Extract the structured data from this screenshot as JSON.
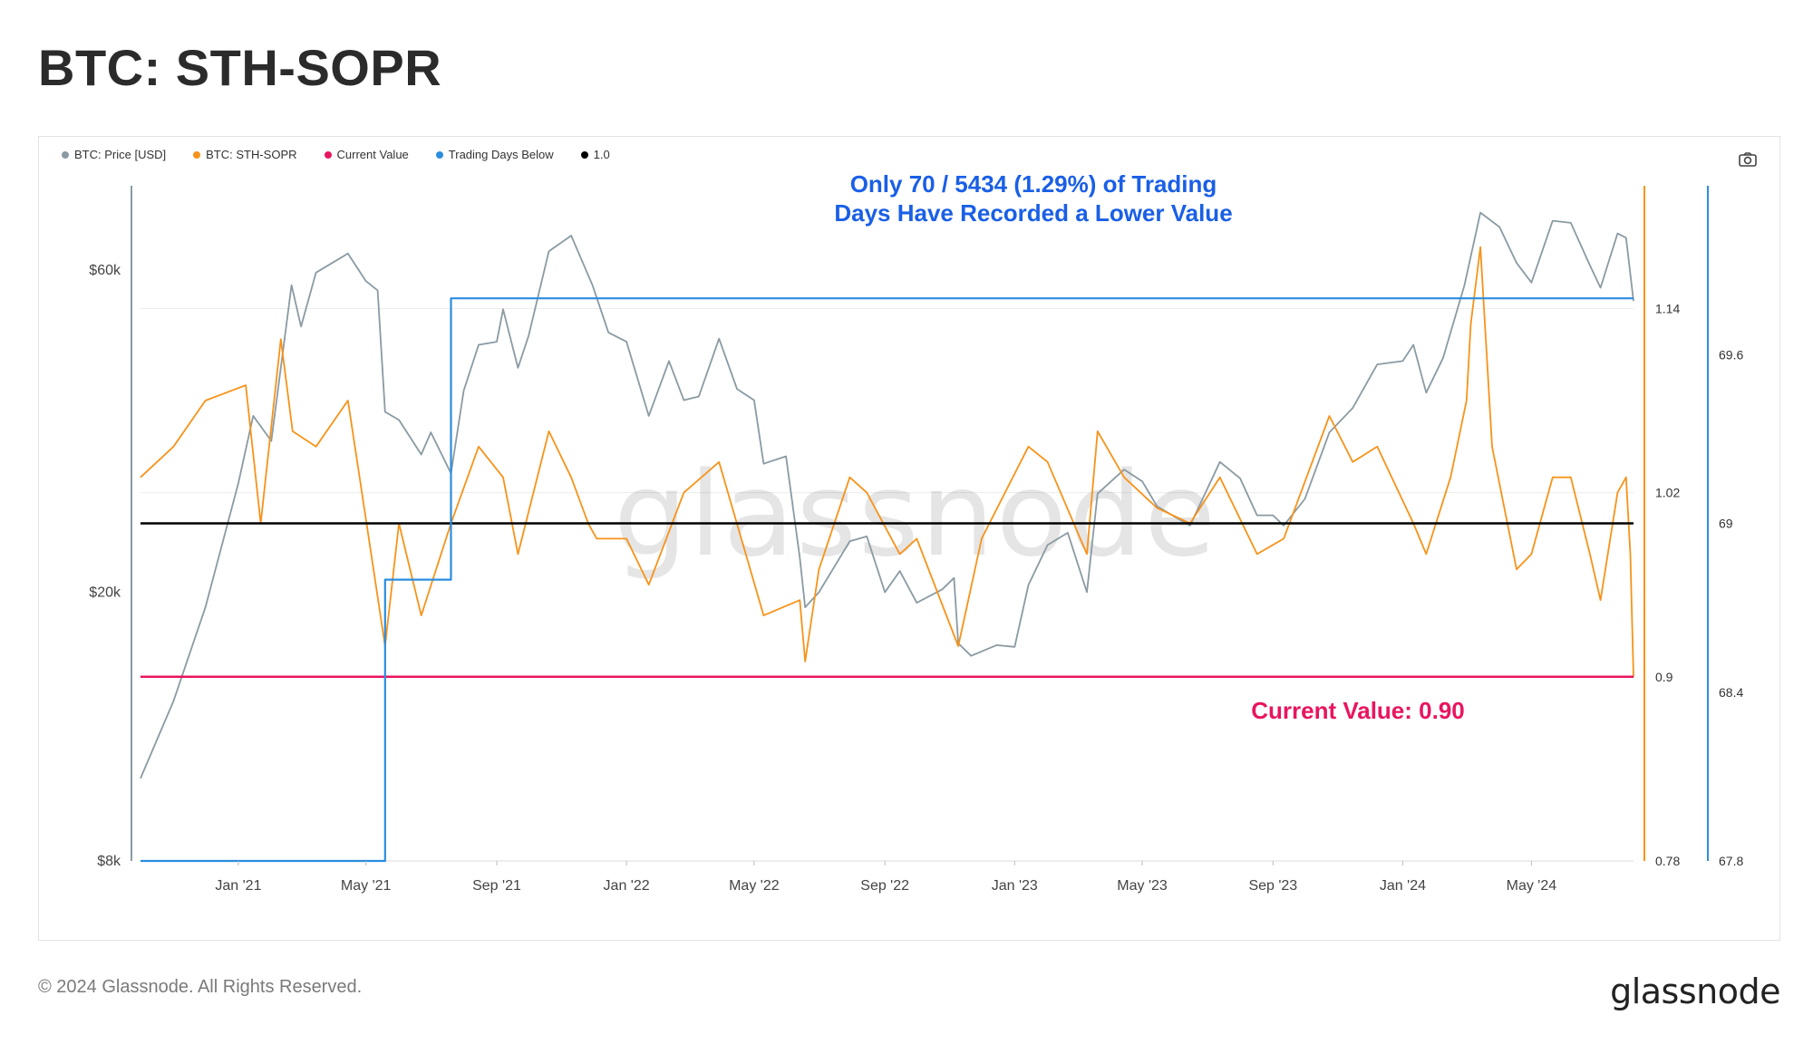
{
  "title": "BTC: STH-SOPR",
  "footer": {
    "copyright": "© 2024 Glassnode. All Rights Reserved.",
    "logo_text": "glassnode"
  },
  "watermark": "glassnode",
  "toolbar": {
    "camera_icon": "camera-icon"
  },
  "legend": [
    {
      "label": "BTC: Price [USD]",
      "color": "#8a9aa3"
    },
    {
      "label": "BTC: STH-SOPR",
      "color": "#f7931a"
    },
    {
      "label": "Current Value",
      "color": "#e8155f"
    },
    {
      "label": "Trading Days Below",
      "color": "#2b8de0"
    },
    {
      "label": "1.0",
      "color": "#000000"
    }
  ],
  "annotations": {
    "trading_days_line1": "Only 70 / 5434 (1.29%) of Trading",
    "trading_days_line2": "Days Have Recorded a Lower Value",
    "current_value": "Current Value: 0.90"
  },
  "chart_data": {
    "type": "line",
    "x_tick_labels": [
      "Jan '21",
      "May '21",
      "Sep '21",
      "Jan '22",
      "May '22",
      "Sep '22",
      "Jan '23",
      "May '23",
      "Sep '23",
      "Jan '24",
      "May '24"
    ],
    "x_tick_dates": [
      "2021-01-01",
      "2021-05-01",
      "2021-09-01",
      "2022-01-01",
      "2022-05-01",
      "2022-09-01",
      "2023-01-01",
      "2023-05-01",
      "2023-09-01",
      "2024-01-01",
      "2024-05-01"
    ],
    "x_range": [
      "2020-10-01",
      "2024-08-05"
    ],
    "y_left": {
      "label": "",
      "scale": "log",
      "range": [
        8000,
        80000
      ],
      "tick_labels": [
        "$60k",
        "$20k",
        "$8k"
      ],
      "tick_values": [
        60000,
        20000,
        8000
      ]
    },
    "y_right_sopr": {
      "range": [
        0.78,
        1.22
      ],
      "tick_labels": [
        "1.14",
        "1.02",
        "0.9",
        "0.78"
      ],
      "tick_values": [
        1.14,
        1.02,
        0.9,
        0.78
      ]
    },
    "y_right_days": {
      "range": [
        67.8,
        70.2
      ],
      "tick_labels": [
        "69.6",
        "69",
        "68.4",
        "67.8"
      ],
      "tick_values": [
        69.6,
        69,
        68.4,
        67.8
      ]
    },
    "grid": true,
    "legend_position": "top-left",
    "series": [
      {
        "name": "BTC: Price [USD]",
        "color": "#8a9aa3",
        "axis": "left",
        "x": [
          "2020-10-01",
          "2020-11-01",
          "2020-12-01",
          "2021-01-01",
          "2021-01-15",
          "2021-02-01",
          "2021-02-20",
          "2021-03-01",
          "2021-03-15",
          "2021-04-14",
          "2021-05-01",
          "2021-05-12",
          "2021-05-19",
          "2021-06-01",
          "2021-06-22",
          "2021-07-01",
          "2021-07-20",
          "2021-08-01",
          "2021-08-15",
          "2021-09-01",
          "2021-09-07",
          "2021-09-21",
          "2021-10-01",
          "2021-10-20",
          "2021-11-10",
          "2021-11-30",
          "2021-12-15",
          "2022-01-01",
          "2022-01-22",
          "2022-02-10",
          "2022-02-24",
          "2022-03-10",
          "2022-03-29",
          "2022-04-15",
          "2022-05-01",
          "2022-05-10",
          "2022-05-31",
          "2022-06-13",
          "2022-06-18",
          "2022-07-01",
          "2022-07-30",
          "2022-08-15",
          "2022-09-01",
          "2022-09-15",
          "2022-10-01",
          "2022-10-25",
          "2022-11-05",
          "2022-11-09",
          "2022-11-21",
          "2022-12-15",
          "2023-01-01",
          "2023-01-14",
          "2023-02-01",
          "2023-02-20",
          "2023-03-10",
          "2023-03-20",
          "2023-04-14",
          "2023-05-01",
          "2023-05-15",
          "2023-06-15",
          "2023-07-13",
          "2023-08-01",
          "2023-08-17",
          "2023-09-01",
          "2023-09-11",
          "2023-10-01",
          "2023-10-24",
          "2023-11-15",
          "2023-12-08",
          "2024-01-01",
          "2024-01-11",
          "2024-01-23",
          "2024-02-08",
          "2024-02-28",
          "2024-03-14",
          "2024-04-01",
          "2024-04-17",
          "2024-05-01",
          "2024-05-21",
          "2024-06-07",
          "2024-06-25",
          "2024-07-05",
          "2024-07-21",
          "2024-07-29",
          "2024-08-05"
        ],
        "values": [
          10600,
          13800,
          19000,
          29000,
          36500,
          33500,
          57000,
          49500,
          59500,
          63500,
          57800,
          56000,
          37000,
          36000,
          32000,
          34500,
          30000,
          39800,
          46500,
          47000,
          52500,
          43000,
          48000,
          64000,
          67500,
          57000,
          48500,
          47000,
          36500,
          44000,
          38500,
          39000,
          47500,
          40000,
          38500,
          31000,
          31800,
          22500,
          19000,
          20000,
          23800,
          24200,
          20000,
          21500,
          19300,
          20200,
          21000,
          16800,
          16100,
          16700,
          16600,
          20500,
          23500,
          24500,
          20000,
          28000,
          30400,
          29200,
          26800,
          25100,
          31200,
          29500,
          26000,
          26000,
          25100,
          27500,
          34500,
          37500,
          43500,
          44000,
          46500,
          39500,
          44500,
          57000,
          73000,
          69500,
          61500,
          57500,
          71000,
          70500,
          61000,
          56500,
          68000,
          67000,
          54000
        ]
      },
      {
        "name": "BTC: STH-SOPR",
        "color": "#f7931a",
        "axis": "right_sopr",
        "x": [
          "2020-10-01",
          "2020-11-01",
          "2020-12-01",
          "2021-01-08",
          "2021-01-22",
          "2021-02-10",
          "2021-02-21",
          "2021-03-15",
          "2021-04-14",
          "2021-04-25",
          "2021-05-19",
          "2021-06-01",
          "2021-06-22",
          "2021-07-20",
          "2021-08-15",
          "2021-09-07",
          "2021-09-21",
          "2021-10-20",
          "2021-11-10",
          "2021-11-26",
          "2021-12-04",
          "2022-01-01",
          "2022-01-22",
          "2022-02-24",
          "2022-03-29",
          "2022-05-10",
          "2022-06-13",
          "2022-06-18",
          "2022-07-01",
          "2022-07-30",
          "2022-08-15",
          "2022-09-15",
          "2022-10-01",
          "2022-11-09",
          "2022-12-01",
          "2023-01-14",
          "2023-02-01",
          "2023-03-10",
          "2023-03-20",
          "2023-04-14",
          "2023-05-15",
          "2023-06-15",
          "2023-07-13",
          "2023-08-17",
          "2023-09-11",
          "2023-10-24",
          "2023-11-15",
          "2023-12-08",
          "2024-01-11",
          "2024-01-23",
          "2024-02-15",
          "2024-03-01",
          "2024-03-05",
          "2024-03-14",
          "2024-03-25",
          "2024-04-17",
          "2024-05-01",
          "2024-05-21",
          "2024-06-07",
          "2024-06-25",
          "2024-07-05",
          "2024-07-21",
          "2024-07-29",
          "2024-08-02",
          "2024-08-05"
        ],
        "values": [
          1.03,
          1.05,
          1.08,
          1.09,
          1.0,
          1.12,
          1.06,
          1.05,
          1.08,
          1.03,
          0.92,
          1.0,
          0.94,
          1.0,
          1.05,
          1.03,
          0.98,
          1.06,
          1.03,
          1.0,
          0.99,
          0.99,
          0.96,
          1.02,
          1.04,
          0.94,
          0.95,
          0.91,
          0.97,
          1.03,
          1.02,
          0.98,
          0.99,
          0.92,
          0.99,
          1.05,
          1.04,
          0.98,
          1.06,
          1.03,
          1.01,
          1.0,
          1.03,
          0.98,
          0.99,
          1.07,
          1.04,
          1.05,
          1.0,
          0.98,
          1.03,
          1.08,
          1.13,
          1.18,
          1.05,
          0.97,
          0.98,
          1.03,
          1.03,
          0.98,
          0.95,
          1.02,
          1.03,
          0.98,
          0.9
        ]
      },
      {
        "name": "Current Value",
        "color": "#e8155f",
        "axis": "right_sopr",
        "x": [
          "2020-10-01",
          "2024-08-05"
        ],
        "values": [
          0.9,
          0.9
        ]
      },
      {
        "name": "1.0",
        "color": "#000000",
        "axis": "right_sopr",
        "x": [
          "2020-10-01",
          "2024-08-05"
        ],
        "values": [
          1.0,
          1.0
        ]
      },
      {
        "name": "Trading Days Below",
        "color": "#2b8de0",
        "axis": "right_days",
        "step": true,
        "x": [
          "2020-10-01",
          "2021-05-19",
          "2021-07-20",
          "2024-08-05"
        ],
        "values": [
          67.8,
          68.8,
          69.8,
          69.8
        ]
      }
    ]
  }
}
